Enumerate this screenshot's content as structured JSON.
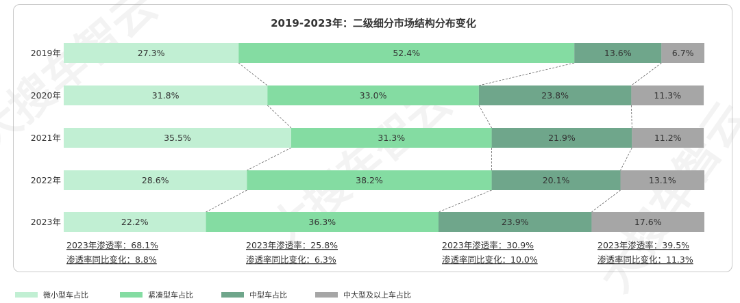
{
  "chart_data": {
    "type": "bar",
    "orientation": "horizontal",
    "stacked": true,
    "normalized_percent": true,
    "title": "2019-2023年：二级细分市场结构分布变化",
    "categories": [
      "2019年",
      "2020年",
      "2021年",
      "2022年",
      "2023年"
    ],
    "series": [
      {
        "name": "微小型车占比",
        "color": "#c1efd3",
        "values": [
          27.3,
          31.8,
          35.5,
          28.6,
          22.2
        ]
      },
      {
        "name": "紧凑型车占比",
        "color": "#84dca2",
        "values": [
          52.4,
          33.0,
          31.3,
          38.2,
          36.3
        ]
      },
      {
        "name": "中型车占比",
        "color": "#6fa68b",
        "values": [
          13.6,
          23.8,
          21.9,
          20.1,
          23.9
        ]
      },
      {
        "name": "中大型及以上车占比",
        "color": "#a6a6a6",
        "values": [
          6.7,
          11.3,
          11.2,
          13.1,
          17.6
        ]
      }
    ],
    "value_labels": [
      [
        "27.3%",
        "52.4%",
        "13.6%",
        "6.7%"
      ],
      [
        "31.8%",
        "33.0%",
        "23.8%",
        "11.3%"
      ],
      [
        "35.5%",
        "31.3%",
        "21.9%",
        "11.2%"
      ],
      [
        "28.6%",
        "38.2%",
        "20.1%",
        "13.1%"
      ],
      [
        "22.2%",
        "36.3%",
        "23.9%",
        "17.6%"
      ]
    ],
    "annotations": [
      {
        "line1": "2023年渗透率：68.1%",
        "line2": "渗透率同比变化：8.8%"
      },
      {
        "line1": "2023年渗透率：25.8%",
        "line2": "渗透率同比变化：6.3%"
      },
      {
        "line1": "2023年渗透率：30.9%",
        "line2": "渗透率同比变化：10.0%"
      },
      {
        "line1": "2023年渗透率：39.5%",
        "line2": "渗透率同比变化：11.3%"
      }
    ],
    "legend_position": "bottom",
    "grid": false
  },
  "watermark": "大搜车智云"
}
